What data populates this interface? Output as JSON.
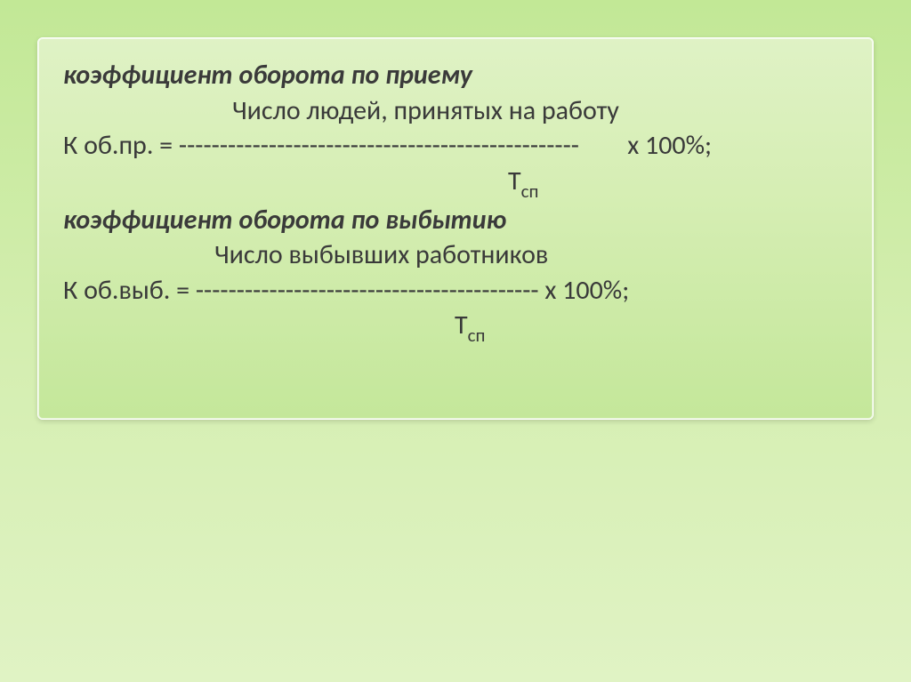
{
  "card": {
    "background_gradient_top": "#dff2c5",
    "background_gradient_mid": "#d6eeb4",
    "background_gradient_bottom": "#c4e79a",
    "border_color": "#ffffff",
    "text_color": "#3a3a3a",
    "font_size_pt": 30
  },
  "formula1": {
    "title": "коэффициент оборота по приему",
    "numerator": "Число людей, принятых на работу",
    "lhs": "К об.пр. = ",
    "dashes": "-------------------------------------------------",
    "rhs": "        х 100%;",
    "denom_T": "Т",
    "denom_sub": "сп"
  },
  "formula2": {
    "title": "коэффициент оборота по выбытию",
    "numerator": "Число выбывших работников",
    "lhs": "К об.выб. = ",
    "dashes": "------------------------------------------",
    "rhs": " х 100%;",
    "denom_T": "Т",
    "denom_sub": "сп"
  }
}
